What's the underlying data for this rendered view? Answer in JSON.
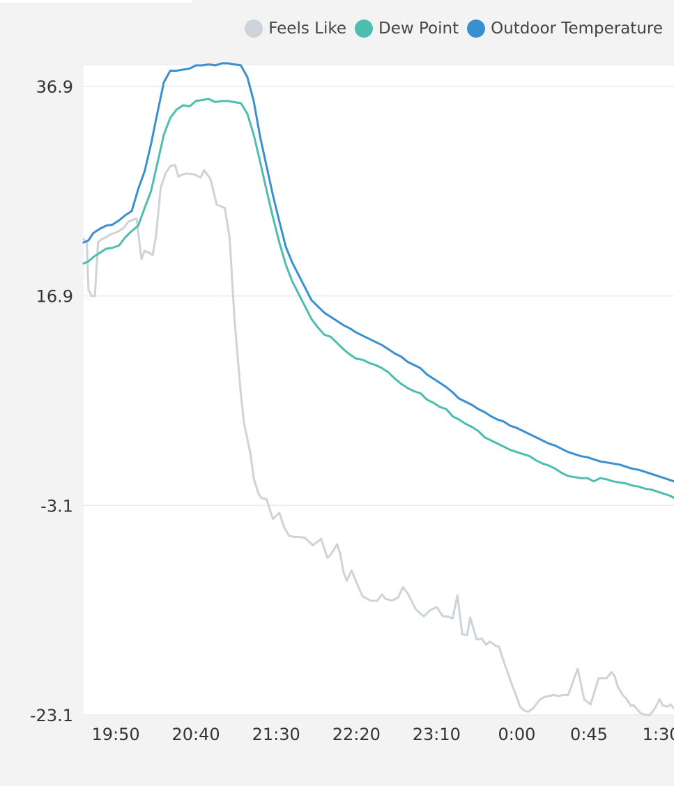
{
  "chart_data": {
    "type": "line",
    "title": "",
    "xlabel": "",
    "ylabel": "",
    "ylim": [
      -23.1,
      39
    ],
    "y_ticks": [
      "36.9",
      "16.9",
      "-3.1",
      "-23.1"
    ],
    "y_tick_values": [
      36.9,
      16.9,
      -3.1,
      -23.1
    ],
    "x_ticks": [
      "19:50",
      "20:40",
      "21:30",
      "22:20",
      "23:10",
      "0:00",
      "0:45",
      "1:30"
    ],
    "x_tick_values": [
      "19:50",
      "20:40",
      "21:30",
      "22:20",
      "23:10",
      "00:00",
      "00:45",
      "01:30"
    ],
    "x_range": [
      "19:30",
      "01:38"
    ],
    "grid": true,
    "legend_position": "top-right",
    "series": [
      {
        "name": "Feels Like",
        "color": "#cdd3d9",
        "x": [
          "19:30",
          "19:32",
          "19:33",
          "19:35",
          "19:37",
          "19:39",
          "19:41",
          "19:44",
          "19:47",
          "19:51",
          "19:55",
          "19:58",
          "20:03",
          "20:06",
          "20:08",
          "20:11",
          "20:13",
          "20:15",
          "20:18",
          "20:21",
          "20:24",
          "20:27",
          "20:29",
          "20:32",
          "20:34",
          "20:39",
          "20:43",
          "20:45",
          "20:49",
          "20:53",
          "20:58",
          "21:01",
          "21:04",
          "21:08",
          "21:10",
          "21:14",
          "21:16",
          "21:19",
          "21:21",
          "21:24",
          "21:28",
          "21:32",
          "21:35",
          "21:38",
          "21:41",
          "21:44",
          "21:48",
          "21:53",
          "21:58",
          "22:02",
          "22:04",
          "22:08",
          "22:10",
          "22:12",
          "22:14",
          "22:17",
          "22:21",
          "22:24",
          "22:29",
          "22:33",
          "22:36",
          "22:38",
          "22:42",
          "22:46",
          "22:49",
          "22:52",
          "22:57",
          "23:02",
          "23:06",
          "23:10",
          "23:14",
          "23:17",
          "23:20",
          "23:23",
          "23:26",
          "23:29",
          "23:31",
          "23:35",
          "23:38",
          "23:41",
          "23:43",
          "23:47",
          "23:49",
          "23:51",
          "23:56",
          "23:59",
          "00:02",
          "00:05",
          "00:07",
          "00:10",
          "00:14",
          "00:17",
          "00:20",
          "00:23",
          "00:26",
          "00:29",
          "00:32",
          "00:38",
          "00:42",
          "00:46",
          "00:51",
          "00:56",
          "00:59",
          "01:01",
          "01:03",
          "01:06",
          "01:08",
          "01:11",
          "01:13",
          "01:17",
          "01:20",
          "01:23",
          "01:26",
          "01:29",
          "01:31",
          "01:34",
          "01:36",
          "01:38"
        ],
        "y": [
          22.3,
          22.0,
          17.5,
          16.9,
          16.9,
          22.0,
          22.3,
          22.5,
          22.8,
          23.0,
          23.4,
          24.0,
          24.3,
          20.4,
          21.2,
          21.0,
          20.8,
          22.5,
          27.2,
          28.6,
          29.3,
          29.4,
          28.3,
          28.5,
          28.6,
          28.5,
          28.2,
          28.9,
          28.1,
          25.6,
          25.3,
          22.5,
          14.7,
          7.5,
          4.7,
          1.8,
          -0.5,
          -2.0,
          -2.4,
          -2.5,
          -4.4,
          -3.8,
          -5.2,
          -6.0,
          -6.1,
          -6.1,
          -6.2,
          -6.9,
          -6.3,
          -8.1,
          -7.8,
          -6.8,
          -7.8,
          -9.5,
          -10.3,
          -9.3,
          -10.8,
          -11.8,
          -12.2,
          -12.2,
          -11.6,
          -12.0,
          -12.2,
          -11.9,
          -10.9,
          -11.5,
          -13.0,
          -13.7,
          -13.1,
          -12.8,
          -13.7,
          -13.7,
          -13.9,
          -11.7,
          -15.4,
          -15.5,
          -13.8,
          -15.9,
          -15.8,
          -16.4,
          -16.1,
          -16.5,
          -16.6,
          -17.6,
          -19.8,
          -21.0,
          -22.3,
          -22.7,
          -22.8,
          -22.5,
          -21.7,
          -21.4,
          -21.3,
          -21.2,
          -21.3,
          -21.2,
          -21.2,
          -18.7,
          -21.6,
          -22.1,
          -19.6,
          -19.6,
          -19.0,
          -19.4,
          -20.4,
          -21.2,
          -21.5,
          -22.2,
          -22.2,
          -22.9,
          -23.1,
          -23.1,
          -22.5,
          -21.6,
          -22.2,
          -22.3,
          -22.1,
          -22.5
        ]
      },
      {
        "name": "Dew Point",
        "color": "#4dbdb0",
        "x": [
          "19:30",
          "19:33",
          "19:36",
          "19:40",
          "19:44",
          "19:48",
          "19:52",
          "19:56",
          "20:00",
          "20:04",
          "20:08",
          "20:12",
          "20:16",
          "20:20",
          "20:24",
          "20:28",
          "20:32",
          "20:36",
          "20:40",
          "20:44",
          "20:48",
          "20:52",
          "20:56",
          "21:00",
          "21:04",
          "21:08",
          "21:12",
          "21:16",
          "21:20",
          "21:24",
          "21:28",
          "21:32",
          "21:36",
          "21:40",
          "21:44",
          "21:48",
          "21:52",
          "21:56",
          "22:00",
          "22:04",
          "22:08",
          "22:12",
          "22:16",
          "22:20",
          "22:24",
          "22:28",
          "22:32",
          "22:36",
          "22:40",
          "22:44",
          "22:48",
          "22:52",
          "22:56",
          "23:00",
          "23:04",
          "23:08",
          "23:12",
          "23:16",
          "23:20",
          "23:24",
          "23:28",
          "23:32",
          "23:36",
          "23:40",
          "23:44",
          "23:48",
          "23:52",
          "23:56",
          "00:00",
          "00:04",
          "00:08",
          "00:12",
          "00:16",
          "00:20",
          "00:24",
          "00:28",
          "00:32",
          "00:36",
          "00:40",
          "00:44",
          "00:48",
          "00:52",
          "00:56",
          "01:00",
          "01:04",
          "01:08",
          "01:12",
          "01:16",
          "01:20",
          "01:24",
          "01:28",
          "01:32",
          "01:36",
          "01:38"
        ],
        "y": [
          20.0,
          20.2,
          20.6,
          21.0,
          21.4,
          21.5,
          21.7,
          22.5,
          23.1,
          23.6,
          25.3,
          26.9,
          29.6,
          32.3,
          33.9,
          34.7,
          35.1,
          35.0,
          35.5,
          35.6,
          35.7,
          35.4,
          35.5,
          35.5,
          35.4,
          35.3,
          34.3,
          32.3,
          29.7,
          27.0,
          24.4,
          22.0,
          19.9,
          18.3,
          17.1,
          15.9,
          14.7,
          13.9,
          13.2,
          13.0,
          12.4,
          11.8,
          11.3,
          10.9,
          10.8,
          10.5,
          10.3,
          10.0,
          9.6,
          9.0,
          8.5,
          8.1,
          7.8,
          7.6,
          7.0,
          6.7,
          6.3,
          6.1,
          5.4,
          5.1,
          4.7,
          4.4,
          4.0,
          3.4,
          3.1,
          2.8,
          2.5,
          2.2,
          2.0,
          1.8,
          1.6,
          1.2,
          0.9,
          0.7,
          0.4,
          0.0,
          -0.3,
          -0.4,
          -0.5,
          -0.5,
          -0.8,
          -0.5,
          -0.6,
          -0.8,
          -0.9,
          -1.0,
          -1.2,
          -1.3,
          -1.5,
          -1.6,
          -1.8,
          -2.0,
          -2.2,
          -2.4
        ]
      },
      {
        "name": "Outdoor Temperature",
        "color": "#3a8fd0",
        "x": [
          "19:30",
          "19:33",
          "19:36",
          "19:40",
          "19:44",
          "19:48",
          "19:52",
          "19:56",
          "20:00",
          "20:04",
          "20:08",
          "20:12",
          "20:16",
          "20:20",
          "20:24",
          "20:28",
          "20:32",
          "20:36",
          "20:40",
          "20:44",
          "20:48",
          "20:52",
          "20:56",
          "21:00",
          "21:04",
          "21:08",
          "21:12",
          "21:16",
          "21:20",
          "21:24",
          "21:28",
          "21:32",
          "21:36",
          "21:40",
          "21:44",
          "21:48",
          "21:52",
          "21:56",
          "22:00",
          "22:04",
          "22:08",
          "22:12",
          "22:16",
          "22:20",
          "22:24",
          "22:28",
          "22:32",
          "22:36",
          "22:40",
          "22:44",
          "22:48",
          "22:52",
          "22:56",
          "23:00",
          "23:04",
          "23:08",
          "23:12",
          "23:16",
          "23:20",
          "23:24",
          "23:28",
          "23:32",
          "23:36",
          "23:40",
          "23:44",
          "23:48",
          "23:52",
          "23:56",
          "00:00",
          "00:04",
          "00:08",
          "00:12",
          "00:16",
          "00:20",
          "00:24",
          "00:28",
          "00:32",
          "00:36",
          "00:40",
          "00:44",
          "00:48",
          "00:52",
          "00:56",
          "01:00",
          "01:04",
          "01:08",
          "01:12",
          "01:16",
          "01:20",
          "01:24",
          "01:28",
          "01:32",
          "01:36",
          "01:38"
        ],
        "y": [
          22.0,
          22.2,
          22.9,
          23.3,
          23.6,
          23.7,
          24.1,
          24.6,
          25.0,
          27.1,
          28.8,
          31.4,
          34.4,
          37.3,
          38.4,
          38.4,
          38.5,
          38.6,
          38.9,
          38.9,
          39.0,
          38.9,
          39.1,
          39.1,
          39.0,
          38.9,
          37.8,
          35.5,
          32.1,
          29.3,
          26.5,
          24.0,
          21.6,
          20.1,
          18.9,
          17.7,
          16.5,
          15.9,
          15.3,
          14.9,
          14.5,
          14.1,
          13.8,
          13.4,
          13.1,
          12.8,
          12.5,
          12.2,
          11.8,
          11.4,
          11.1,
          10.6,
          10.3,
          10.0,
          9.4,
          9.0,
          8.6,
          8.2,
          7.7,
          7.1,
          6.8,
          6.5,
          6.1,
          5.8,
          5.4,
          5.1,
          4.9,
          4.5,
          4.3,
          4.0,
          3.7,
          3.4,
          3.1,
          2.8,
          2.6,
          2.3,
          2.0,
          1.8,
          1.6,
          1.5,
          1.3,
          1.1,
          1.0,
          0.9,
          0.8,
          0.6,
          0.4,
          0.3,
          0.1,
          -0.1,
          -0.3,
          -0.5,
          -0.7,
          -0.8
        ]
      }
    ]
  },
  "legend": [
    {
      "label": "Feels Like",
      "color": "#cdd3d9"
    },
    {
      "label": "Dew Point",
      "color": "#4dbdb0"
    },
    {
      "label": "Outdoor Temperature",
      "color": "#3a8fd0"
    }
  ]
}
